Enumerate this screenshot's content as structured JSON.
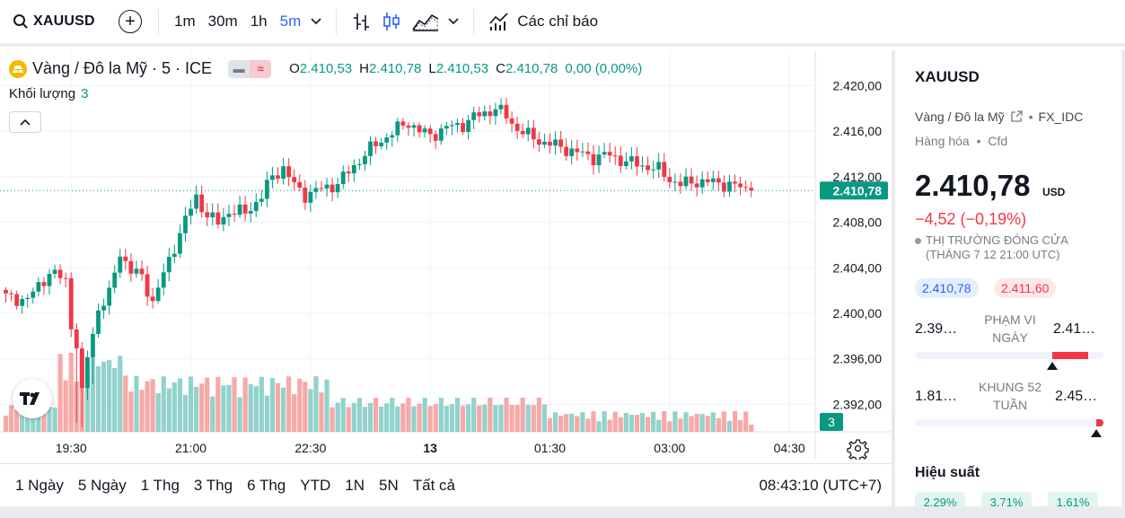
{
  "toolbar": {
    "symbol": "XAUUSD",
    "intervals": [
      "1m",
      "30m",
      "1h",
      "5m"
    ],
    "active_interval": "5m",
    "indicators_label": "Các chỉ báo"
  },
  "legend": {
    "title": "Vàng / Đô la Mỹ · 5 · ICE",
    "open_label": "O",
    "open": "2.410,53",
    "high_label": "H",
    "high": "2.410,78",
    "low_label": "L",
    "low": "2.410,53",
    "close_label": "C",
    "close": "2.410,78",
    "change": "0,00 (0,00%)",
    "volume_label": "Khối lượng",
    "volume_value": "3"
  },
  "colors": {
    "up": "#089981",
    "down": "#f23645",
    "vol_up": "#92d2cc",
    "vol_down": "#f7a9a7",
    "accent": "#2962ff"
  },
  "chart_data": {
    "type": "candlestick",
    "interval": "5m",
    "ylim": [
      2389.2,
      2421.6
    ],
    "y_ticks": [
      "2.420,00",
      "2.416,00",
      "2.412,00",
      "2.408,00",
      "2.404,00",
      "2.400,00",
      "2.396,00",
      "2.392,00"
    ],
    "y_tick_values": [
      2420,
      2416,
      2412,
      2408,
      2404,
      2400,
      2396,
      2392
    ],
    "x_ticks": [
      "19:30",
      "21:00",
      "22:30",
      "13",
      "01:30",
      "03:00",
      "04:30"
    ],
    "x_tick_bar_index": [
      12,
      34,
      56,
      78,
      100,
      122,
      144
    ],
    "last_price": 2410.78,
    "last_price_label": "2.410,78",
    "volume_label": "3",
    "anchors": [
      [
        0,
        2401.4
      ],
      [
        4,
        2401.2
      ],
      [
        8,
        2403.6
      ],
      [
        11,
        2402.9
      ],
      [
        12,
        2399.0
      ],
      [
        13,
        2397.2
      ],
      [
        14,
        2392.8
      ],
      [
        15,
        2396.2
      ],
      [
        17,
        2400.4
      ],
      [
        19,
        2401.6
      ],
      [
        21,
        2405.4
      ],
      [
        23,
        2403.7
      ],
      [
        25,
        2403.2
      ],
      [
        27,
        2401.0
      ],
      [
        29,
        2403.4
      ],
      [
        31,
        2405.9
      ],
      [
        33,
        2408.2
      ],
      [
        35,
        2410.2
      ],
      [
        37,
        2408.6
      ],
      [
        39,
        2407.9
      ],
      [
        41,
        2409.0
      ],
      [
        44,
        2408.8
      ],
      [
        47,
        2410.3
      ],
      [
        49,
        2412.0
      ],
      [
        51,
        2412.8
      ],
      [
        53,
        2411.2
      ],
      [
        55,
        2410.4
      ],
      [
        58,
        2410.9
      ],
      [
        61,
        2411.4
      ],
      [
        63,
        2412.4
      ],
      [
        66,
        2414.0
      ],
      [
        69,
        2415.2
      ],
      [
        72,
        2416.2
      ],
      [
        74,
        2416.8
      ],
      [
        76,
        2416.0
      ],
      [
        78,
        2415.6
      ],
      [
        81,
        2416.3
      ],
      [
        84,
        2416.6
      ],
      [
        86,
        2417.2
      ],
      [
        88,
        2417.6
      ],
      [
        90,
        2418.0
      ],
      [
        92,
        2417.3
      ],
      [
        94,
        2416.2
      ],
      [
        96,
        2415.6
      ],
      [
        99,
        2415.0
      ],
      [
        102,
        2414.6
      ],
      [
        105,
        2414.1
      ],
      [
        108,
        2413.7
      ],
      [
        111,
        2413.9
      ],
      [
        114,
        2413.3
      ],
      [
        117,
        2413.0
      ],
      [
        120,
        2412.6
      ],
      [
        122,
        2411.8
      ],
      [
        124,
        2411.3
      ],
      [
        127,
        2411.6
      ],
      [
        130,
        2411.5
      ],
      [
        133,
        2411.3
      ],
      [
        136,
        2410.9
      ],
      [
        137,
        2410.78
      ]
    ],
    "dips": [
      [
        13,
        2390.4
      ],
      [
        14,
        2390.0
      ],
      [
        15,
        2392.4
      ],
      [
        16,
        2393.8
      ]
    ]
  },
  "range_bar": {
    "items": [
      "1 Ngày",
      "5 Ngày",
      "1 Thg",
      "3 Thg",
      "6 Thg",
      "YTD",
      "1N",
      "5N",
      "Tất cả"
    ],
    "clock": "08:43:10 (UTC+7)"
  },
  "panel": {
    "symbol": "XAUUSD",
    "description": "Vàng / Đô la Mỹ",
    "source": "FX_IDC",
    "category": "Hàng hóa",
    "instrument": "Cfd",
    "price": "2.410,78",
    "currency": "USD",
    "change": "−4,52 (−0,19%)",
    "status_line1": "THỊ TRƯỜNG ĐÓNG CỬA",
    "status_line2": "(THÁNG 7 12 21:00 UTC)",
    "bid": "2.410,78",
    "ask": "2.411,60",
    "day_low": "2.39…",
    "day_label": "PHẠM VI NGÀY",
    "day_high": "2.41…",
    "day_position": 0.73,
    "wk52_low": "1.81…",
    "wk52_label": "KHUNG 52 TUẦN",
    "wk52_high": "2.45…",
    "wk52_position": 0.96,
    "performance_label": "Hiệu suất",
    "performance": [
      "2,29%",
      "3,71%",
      "1,61%"
    ]
  }
}
